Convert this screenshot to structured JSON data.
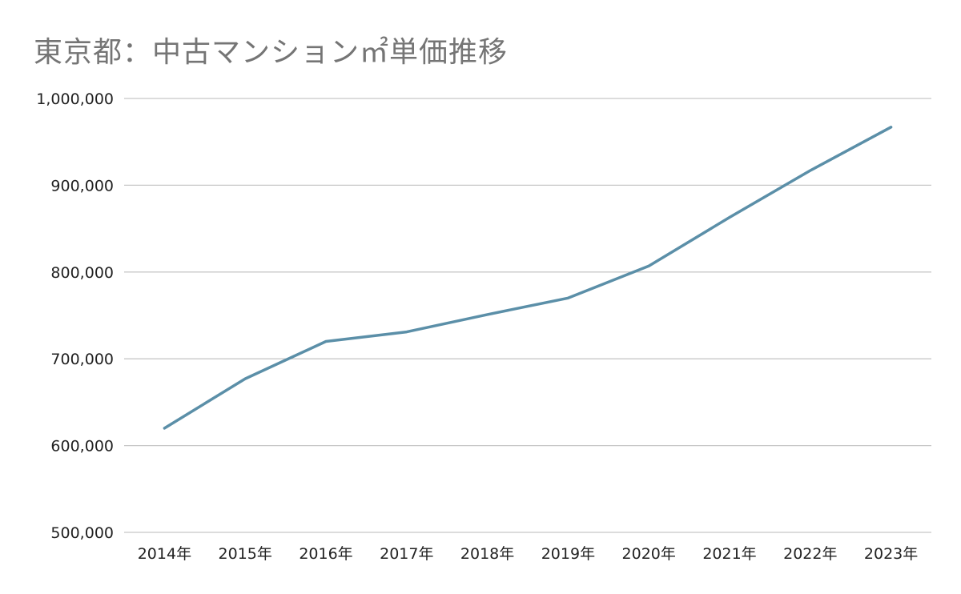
{
  "chart_data": {
    "type": "line",
    "title": "東京都：中古マンション㎡単価推移",
    "xlabel": "",
    "ylabel": "",
    "categories": [
      "2014年",
      "2015年",
      "2016年",
      "2017年",
      "2018年",
      "2019年",
      "2020年",
      "2021年",
      "2022年",
      "2023年"
    ],
    "series": [
      {
        "values": [
          620000,
          677000,
          720000,
          731000,
          751000,
          770000,
          807000,
          863000,
          917000,
          967000
        ],
        "color": "#5b8fa8"
      }
    ],
    "ylim": [
      500000,
      1000000
    ],
    "yticks": [
      500000,
      600000,
      700000,
      800000,
      900000,
      1000000
    ],
    "ytick_labels": [
      "500,000",
      "600,000",
      "700,000",
      "800,000",
      "900,000",
      "1,000,000"
    ],
    "grid": true,
    "legend": "none"
  }
}
